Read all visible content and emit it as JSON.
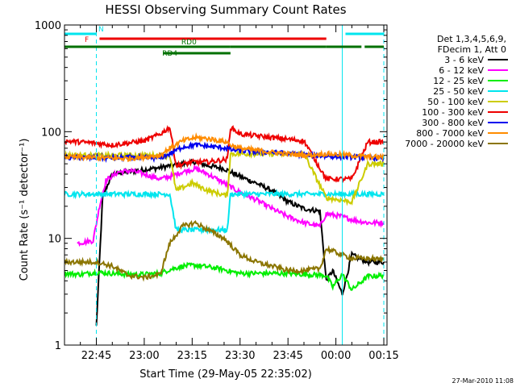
{
  "chart_data": {
    "type": "line",
    "title": "HESSI Observing Summary Count Rates",
    "xlabel": "Start Time (29-May-05 22:35:02)",
    "ylabel": "Count Rate (s⁻¹ detector⁻¹)",
    "y_scale": "log",
    "ylim": [
      1,
      1000
    ],
    "xlim": [
      "22:35:02",
      "00:16:00"
    ],
    "x_ticks": [
      "22:45",
      "23:00",
      "23:15",
      "23:30",
      "23:45",
      "00:00",
      "00:15"
    ],
    "y_ticks": [
      "1",
      "10",
      "100",
      "1000"
    ],
    "grid": false,
    "legend_position": "right",
    "legend_header": [
      "Det 1,3,4,5,6,9,",
      "FDecim 1, Att 0"
    ],
    "timestamp": "27-Mar-2010 11:08",
    "flags": [
      {
        "label": "N",
        "color": "#00e5ee",
        "segments": [
          [
            "22:35:02",
            "22:45:00"
          ],
          [
            "00:03:00",
            "00:15:00"
          ]
        ]
      },
      {
        "label": "F",
        "color": "#ee0000",
        "segments": [
          [
            "22:46:00",
            "23:57:00"
          ]
        ]
      },
      {
        "label": "RD0",
        "color": "#007000",
        "segments": [
          [
            "22:35:02",
            "23:27:00"
          ],
          [
            "23:27:00",
            "23:57:00"
          ],
          [
            "23:57:00",
            "00:08:00"
          ],
          [
            "00:09:00",
            "00:15:00"
          ]
        ]
      },
      {
        "label": "RD4",
        "color": "#007000",
        "segments": [
          [
            "23:06:00",
            "23:27:00"
          ]
        ]
      }
    ],
    "vlines": [
      {
        "time": "22:45:00",
        "color": "#00e5ee",
        "style": "dashed"
      },
      {
        "time": "00:02:00",
        "color": "#00e5ee",
        "style": "solid"
      },
      {
        "time": "00:15:00",
        "color": "#00e5ee",
        "style": "dashed"
      }
    ],
    "series": [
      {
        "name": "3 - 6 keV",
        "color": "#000000",
        "x": [
          "22:45",
          "22:47",
          "22:50",
          "22:55",
          "23:00",
          "23:05",
          "23:08",
          "23:12",
          "23:16",
          "23:20",
          "23:25",
          "23:30",
          "23:35",
          "23:40",
          "23:45",
          "23:50",
          "23:55",
          "23:57",
          "23:59",
          "00:02",
          "00:05",
          "00:10",
          "00:15"
        ],
        "y": [
          1.5,
          25,
          40,
          42,
          44,
          46,
          48,
          50,
          52,
          48,
          45,
          38,
          33,
          28,
          22,
          19,
          18,
          4,
          5,
          3,
          7,
          6,
          6
        ]
      },
      {
        "name": "6 - 12 keV",
        "color": "#ff00ff",
        "x": [
          "22:39",
          "22:44",
          "22:46",
          "22:48",
          "22:52",
          "22:56",
          "23:00",
          "23:05",
          "23:08",
          "23:12",
          "23:16",
          "23:20",
          "23:25",
          "23:30",
          "23:35",
          "23:40",
          "23:45",
          "23:50",
          "23:55",
          "23:57",
          "00:02",
          "00:05",
          "00:10",
          "00:15"
        ],
        "y": [
          9,
          9.5,
          20,
          35,
          42,
          43,
          40,
          36,
          38,
          42,
          45,
          40,
          33,
          27,
          23,
          19,
          16,
          14,
          13,
          17,
          16,
          15,
          14,
          14
        ]
      },
      {
        "name": "12 - 25 keV",
        "color": "#00ee00",
        "x": [
          "22:35",
          "22:40",
          "22:45",
          "22:50",
          "22:55",
          "23:00",
          "23:05",
          "23:08",
          "23:12",
          "23:16",
          "23:20",
          "23:25",
          "23:27",
          "23:30",
          "23:35",
          "23:40",
          "23:45",
          "23:50",
          "23:57",
          "23:59",
          "00:02",
          "00:05",
          "00:10",
          "00:15"
        ],
        "y": [
          4.7,
          4.6,
          4.8,
          4.7,
          4.6,
          4.6,
          4.7,
          5.1,
          5.5,
          5.6,
          5.4,
          5.1,
          4.9,
          4.7,
          4.7,
          4.7,
          4.7,
          4.6,
          4.5,
          3.5,
          4.6,
          3.3,
          4.4,
          4.5
        ]
      },
      {
        "name": "25 - 50 keV",
        "color": "#00e5ee",
        "x": [
          "22:35",
          "22:45",
          "22:55",
          "23:05",
          "23:08",
          "23:10",
          "23:15",
          "23:20",
          "23:26",
          "23:27",
          "23:30",
          "23:40",
          "23:50",
          "23:57",
          "00:05",
          "00:10",
          "00:15"
        ],
        "y": [
          26,
          26,
          26,
          26,
          26,
          12,
          12,
          12,
          12,
          26,
          26,
          26,
          26,
          26,
          26,
          26,
          26
        ]
      },
      {
        "name": "50 - 100 keV",
        "color": "#cccc00",
        "x": [
          "22:35",
          "22:45",
          "22:55",
          "23:05",
          "23:08",
          "23:10",
          "23:15",
          "23:20",
          "23:26",
          "23:27",
          "23:30",
          "23:40",
          "23:50",
          "23:57",
          "00:05",
          "00:10",
          "00:15"
        ],
        "y": [
          60,
          60,
          60,
          60,
          60,
          28,
          33,
          28,
          25,
          62,
          62,
          62,
          62,
          24,
          22,
          50,
          50
        ]
      },
      {
        "name": "100 - 300 keV",
        "color": "#ee0000",
        "x": [
          "22:35",
          "22:45",
          "22:50",
          "23:00",
          "23:05",
          "23:08",
          "23:10",
          "23:15",
          "23:20",
          "23:26",
          "23:27",
          "23:30",
          "23:40",
          "23:50",
          "23:57",
          "00:05",
          "00:10",
          "00:15"
        ],
        "y": [
          82,
          78,
          75,
          82,
          95,
          110,
          48,
          52,
          52,
          55,
          110,
          95,
          88,
          82,
          36,
          36,
          80,
          80
        ]
      },
      {
        "name": "300 - 800 keV",
        "color": "#0000ee",
        "x": [
          "22:35",
          "22:45",
          "22:55",
          "23:05",
          "23:08",
          "23:12",
          "23:16",
          "23:20",
          "23:26",
          "23:27",
          "23:30",
          "23:40",
          "23:50",
          "23:57",
          "00:05",
          "00:10",
          "00:15"
        ],
        "y": [
          57,
          57,
          57,
          57,
          62,
          72,
          75,
          73,
          70,
          68,
          66,
          64,
          61,
          59,
          58,
          57,
          57
        ]
      },
      {
        "name": "800 - 7000 keV",
        "color": "#ff8c00",
        "x": [
          "22:35",
          "22:45",
          "22:55",
          "23:05",
          "23:08",
          "23:12",
          "23:16",
          "23:20",
          "23:26",
          "23:27",
          "23:30",
          "23:40",
          "23:50",
          "23:57",
          "00:05",
          "00:10",
          "00:15"
        ],
        "y": [
          58,
          57,
          56,
          60,
          70,
          82,
          88,
          86,
          80,
          75,
          70,
          64,
          60,
          62,
          60,
          58,
          58
        ]
      },
      {
        "name": "7000 - 20000 keV",
        "color": "#8b7500",
        "x": [
          "22:35",
          "22:45",
          "22:50",
          "22:55",
          "23:00",
          "23:05",
          "23:08",
          "23:12",
          "23:16",
          "23:20",
          "23:25",
          "23:30",
          "23:35",
          "23:40",
          "23:45",
          "23:50",
          "23:55",
          "23:57",
          "00:02",
          "00:05",
          "00:10",
          "00:15"
        ],
        "y": [
          6,
          6,
          5.5,
          4.5,
          4.3,
          4.6,
          9,
          13,
          14,
          12,
          10,
          7,
          6,
          5.5,
          5,
          5,
          5.2,
          8,
          7,
          6.5,
          6.5,
          6.3
        ]
      }
    ]
  }
}
